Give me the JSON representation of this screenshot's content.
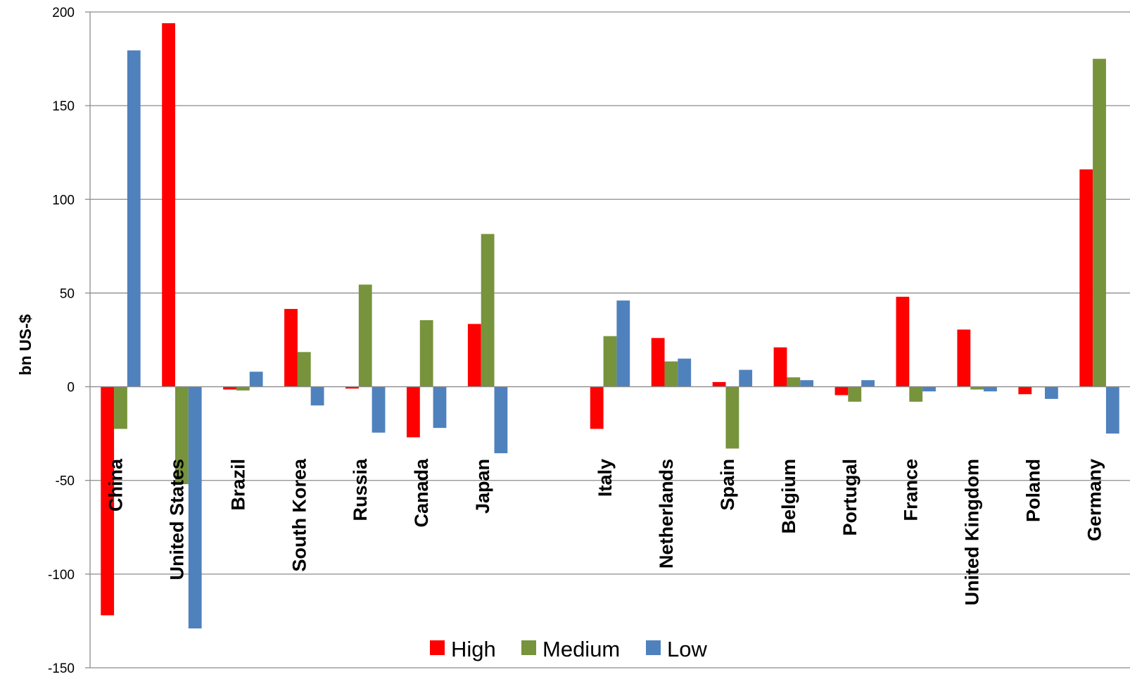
{
  "chart_data": {
    "type": "bar",
    "title": "",
    "xlabel": "",
    "ylabel": "bn US-$",
    "ylim": [
      -150,
      200
    ],
    "yticks": [
      200,
      150,
      100,
      50,
      0,
      -50,
      -100,
      -150
    ],
    "grid": true,
    "legend_position": "bottom",
    "categories": [
      "China",
      "United States",
      "Brazil",
      "South Korea",
      "Russia",
      "Canada",
      "Japan",
      "",
      "Italy",
      "Netherlands",
      "Spain",
      "Belgium",
      "Portugal",
      "France",
      "United Kingdom",
      "Poland",
      "Germany"
    ],
    "series": [
      {
        "name": "High",
        "color": "#ff0000",
        "values": [
          -122,
          194,
          -1.5,
          41.5,
          -1,
          -27,
          33.5,
          null,
          -22.5,
          26,
          2.5,
          21,
          -4.5,
          48,
          30.5,
          -4,
          116
        ]
      },
      {
        "name": "Medium",
        "color": "#77933c",
        "values": [
          -22.5,
          -52,
          -2,
          18.5,
          54.5,
          35.5,
          81.5,
          null,
          27,
          13.5,
          -33,
          5,
          -8,
          -8,
          -1.5,
          0,
          175
        ]
      },
      {
        "name": "Low",
        "color": "#4f81bd",
        "values": [
          179.5,
          -129,
          8,
          -10,
          -24.5,
          -22,
          -35.5,
          null,
          46,
          15,
          9,
          3.5,
          3.5,
          -2.5,
          -2.5,
          -6.5,
          -25
        ]
      }
    ]
  }
}
